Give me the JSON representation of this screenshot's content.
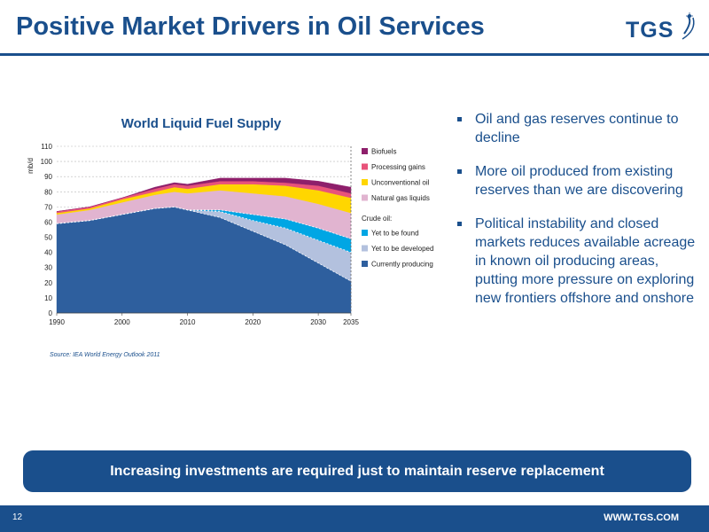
{
  "slide": {
    "title": "Positive Market Drivers in Oil Services",
    "logo_text": "TGS",
    "source": "Source: IEA World Energy Outlook 2011",
    "bullets": [
      "Oil and gas reserves continue to decline",
      "More oil produced from existing reserves than we are discovering",
      "Political instability and closed markets reduces available acreage in known oil producing areas, putting more pressure on exploring new frontiers offshore and onshore"
    ],
    "banner": "Increasing investments are required just to maintain reserve replacement",
    "page_number": "12",
    "url": "WWW.TGS.COM"
  },
  "colors": {
    "brand": "#1a4f8c",
    "currently_producing": "#2e5f9e",
    "yet_to_be_developed": "#b3c1de",
    "yet_to_be_found": "#00a6e4",
    "natural_gas_liquids": "#e1b4d0",
    "unconventional_oil": "#ffd600",
    "processing_gains": "#e8537a",
    "biofuels": "#8e1f6b"
  },
  "chart_data": {
    "type": "area",
    "stacked": true,
    "title": "World Liquid Fuel Supply",
    "ylabel": "mb/d",
    "xlabel": "",
    "xlim": [
      1990,
      2035
    ],
    "ylim": [
      0,
      110
    ],
    "x_ticks": [
      1990,
      2000,
      2010,
      2020,
      2030,
      2035
    ],
    "y_ticks": [
      0,
      10,
      20,
      30,
      40,
      50,
      60,
      70,
      80,
      90,
      100,
      110
    ],
    "grid": true,
    "legend_position": "right",
    "legend_subheading": "Crude oil:",
    "x": [
      1990,
      1995,
      2000,
      2005,
      2008,
      2010,
      2015,
      2020,
      2025,
      2030,
      2035
    ],
    "series": [
      {
        "name": "Currently producing",
        "color_key": "currently_producing",
        "values": [
          59,
          61,
          65,
          69,
          70,
          68,
          63,
          54,
          45,
          33,
          21
        ]
      },
      {
        "name": "Yet to be developed",
        "color_key": "yet_to_be_developed",
        "values": [
          0,
          0,
          0,
          0,
          0,
          0,
          4,
          7,
          11,
          15,
          19
        ]
      },
      {
        "name": "Yet to be found",
        "color_key": "yet_to_be_found",
        "values": [
          0,
          0,
          0,
          0,
          0,
          0,
          1,
          4,
          6,
          8,
          9
        ]
      },
      {
        "name": "Natural gas liquids",
        "color_key": "natural_gas_liquids",
        "values": [
          6,
          7,
          8,
          9,
          10,
          11,
          13,
          14,
          15,
          16,
          17
        ]
      },
      {
        "name": "Unconventional oil",
        "color_key": "unconventional_oil",
        "values": [
          1,
          1,
          2,
          2,
          3,
          3,
          4,
          6,
          7,
          9,
          10
        ]
      },
      {
        "name": "Processing gains",
        "color_key": "processing_gains",
        "values": [
          1,
          1,
          1,
          2,
          2,
          2,
          2,
          2,
          2,
          3,
          3
        ]
      },
      {
        "name": "Biofuels",
        "color_key": "biofuels",
        "values": [
          0,
          0,
          0,
          1,
          1,
          1,
          2,
          2,
          3,
          3,
          4
        ]
      }
    ],
    "legend_groups": [
      {
        "heading": "",
        "items": [
          "Biofuels",
          "Processing gains",
          "Unconventional oil",
          "Natural gas liquids"
        ]
      },
      {
        "heading": "Crude oil:",
        "items": [
          "Yet to be found",
          "Yet to be developed",
          "Currently producing"
        ]
      }
    ]
  }
}
